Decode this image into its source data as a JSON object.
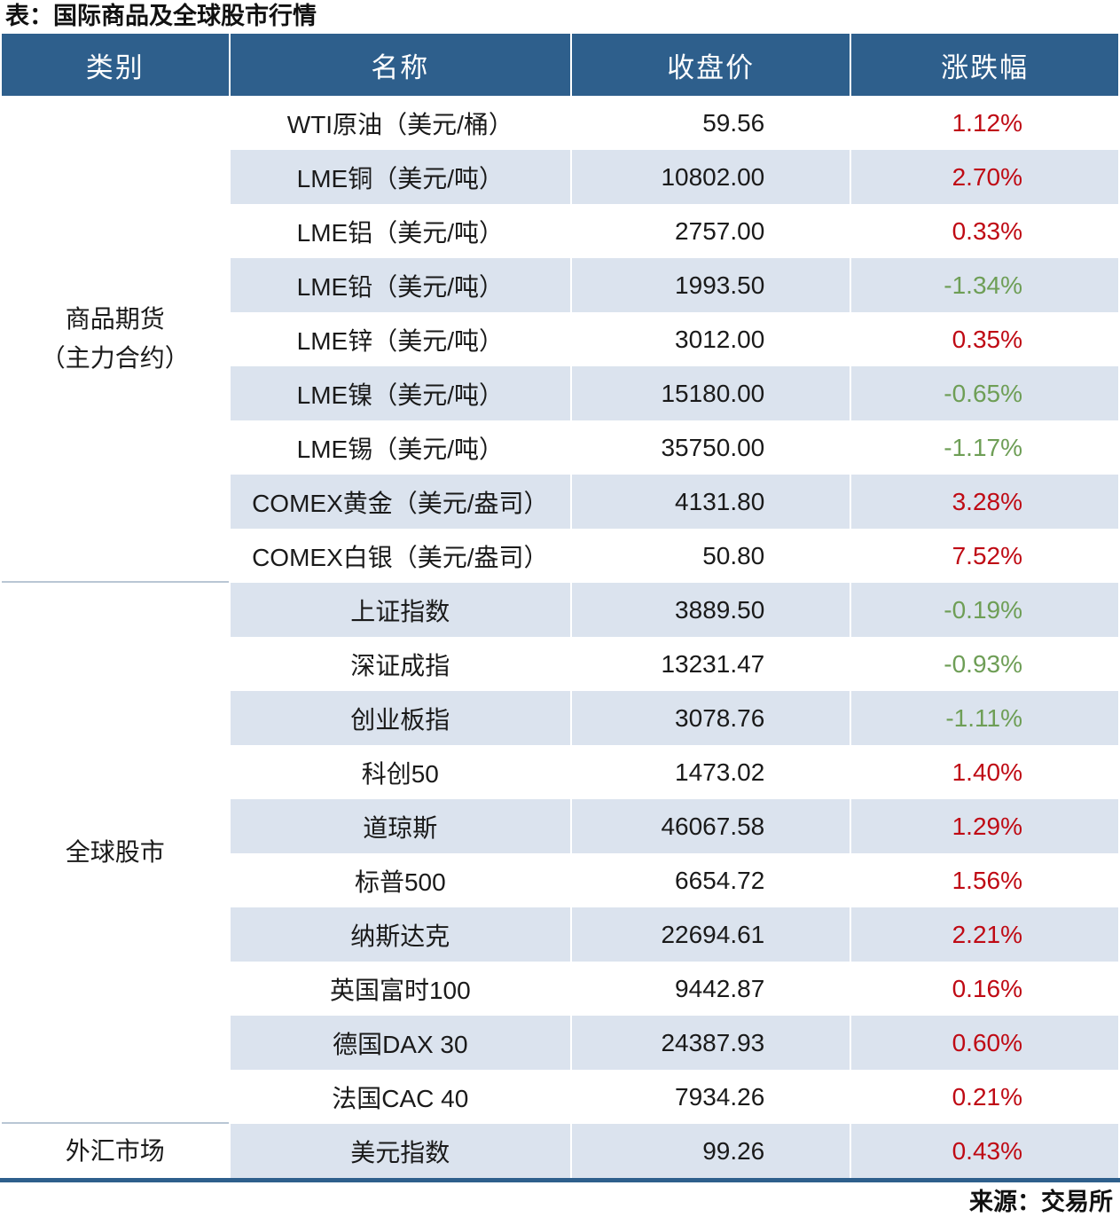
{
  "title": "表：国际商品及全球股市行情",
  "source": "来源：交易所",
  "colors": {
    "header_bg": "#2E5F8C",
    "header_text": "#FFFFFF",
    "stripe_bg": "#DBE3EE",
    "row_bg": "#FFFFFF",
    "up_red": "#BF0A14",
    "down_green": "#6E9E56",
    "text": "#1A1A1A",
    "group_divider": "#B9C6D4",
    "bottom_rule": "#2E5F8C"
  },
  "table": {
    "headers": [
      "类别",
      "名称",
      "收盘价",
      "涨跌幅"
    ],
    "groups": [
      {
        "category_lines": [
          "商品期货",
          "（主力合约）"
        ],
        "rows": [
          {
            "name": "WTI原油（美元/桶）",
            "close": "59.56",
            "change": "1.12%"
          },
          {
            "name": "LME铜（美元/吨）",
            "close": "10802.00",
            "change": "2.70%"
          },
          {
            "name": "LME铝（美元/吨）",
            "close": "2757.00",
            "change": "0.33%"
          },
          {
            "name": "LME铅（美元/吨）",
            "close": "1993.50",
            "change": "-1.34%"
          },
          {
            "name": "LME锌（美元/吨）",
            "close": "3012.00",
            "change": "0.35%"
          },
          {
            "name": "LME镍（美元/吨）",
            "close": "15180.00",
            "change": "-0.65%"
          },
          {
            "name": "LME锡（美元/吨）",
            "close": "35750.00",
            "change": "-1.17%"
          },
          {
            "name": "COMEX黄金（美元/盎司）",
            "close": "4131.80",
            "change": "3.28%"
          },
          {
            "name": "COMEX白银（美元/盎司）",
            "close": "50.80",
            "change": "7.52%"
          }
        ]
      },
      {
        "category_lines": [
          "全球股市"
        ],
        "rows": [
          {
            "name": "上证指数",
            "close": "3889.50",
            "change": "-0.19%"
          },
          {
            "name": "深证成指",
            "close": "13231.47",
            "change": "-0.93%"
          },
          {
            "name": "创业板指",
            "close": "3078.76",
            "change": "-1.11%"
          },
          {
            "name": "科创50",
            "close": "1473.02",
            "change": "1.40%"
          },
          {
            "name": "道琼斯",
            "close": "46067.58",
            "change": "1.29%"
          },
          {
            "name": "标普500",
            "close": "6654.72",
            "change": "1.56%"
          },
          {
            "name": "纳斯达克",
            "close": "22694.61",
            "change": "2.21%"
          },
          {
            "name": "英国富时100",
            "close": "9442.87",
            "change": "0.16%"
          },
          {
            "name": "德国DAX 30",
            "close": "24387.93",
            "change": "0.60%"
          },
          {
            "name": "法国CAC 40",
            "close": "7934.26",
            "change": "0.21%"
          }
        ]
      },
      {
        "category_lines": [
          "外汇市场"
        ],
        "rows": [
          {
            "name": "美元指数",
            "close": "99.26",
            "change": "0.43%"
          }
        ]
      }
    ]
  }
}
